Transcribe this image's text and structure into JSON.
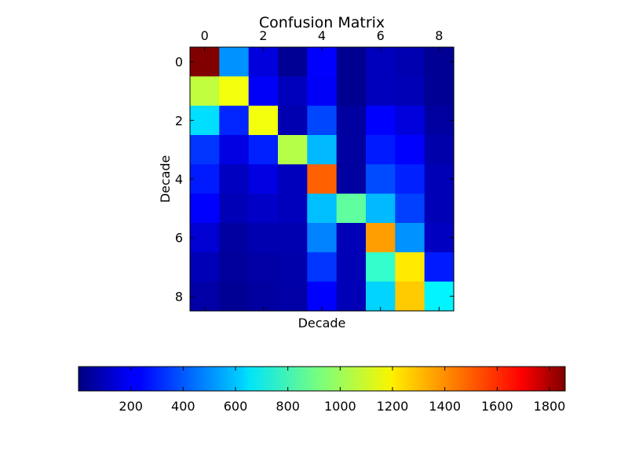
{
  "chart_data": {
    "type": "heatmap",
    "title": "Confusion Matrix",
    "xlabel": "Decade",
    "ylabel": "Decade",
    "x_tick_labels": [
      "0",
      "2",
      "4",
      "6",
      "8"
    ],
    "y_tick_labels": [
      "0",
      "2",
      "4",
      "6",
      "8"
    ],
    "x_tick_values": [
      0,
      2,
      4,
      6,
      8
    ],
    "y_tick_values": [
      0,
      2,
      4,
      6,
      8
    ],
    "x_axis_position": "top",
    "rows": 9,
    "cols": 9,
    "colormap": "jet",
    "vmin": 0,
    "vmax": 1860,
    "matrix": [
      [
        1860,
        500,
        170,
        40,
        230,
        30,
        110,
        90,
        40
      ],
      [
        1050,
        1140,
        220,
        110,
        220,
        30,
        110,
        100,
        40
      ],
      [
        640,
        300,
        1140,
        90,
        360,
        60,
        230,
        170,
        60
      ],
      [
        330,
        180,
        290,
        1030,
        570,
        60,
        280,
        230,
        80
      ],
      [
        280,
        120,
        180,
        110,
        1450,
        60,
        370,
        290,
        100
      ],
      [
        230,
        100,
        130,
        110,
        580,
        870,
        570,
        350,
        100
      ],
      [
        150,
        60,
        90,
        90,
        470,
        100,
        1340,
        500,
        120
      ],
      [
        100,
        50,
        70,
        80,
        330,
        100,
        790,
        1200,
        280
      ],
      [
        70,
        40,
        60,
        70,
        230,
        100,
        620,
        1260,
        680
      ]
    ],
    "grid": false,
    "colorbar": {
      "orientation": "horizontal",
      "tick_labels": [
        "200",
        "400",
        "600",
        "800",
        "1000",
        "1200",
        "1400",
        "1600",
        "1800"
      ],
      "tick_values": [
        200,
        400,
        600,
        800,
        1000,
        1200,
        1400,
        1600,
        1800
      ]
    }
  }
}
